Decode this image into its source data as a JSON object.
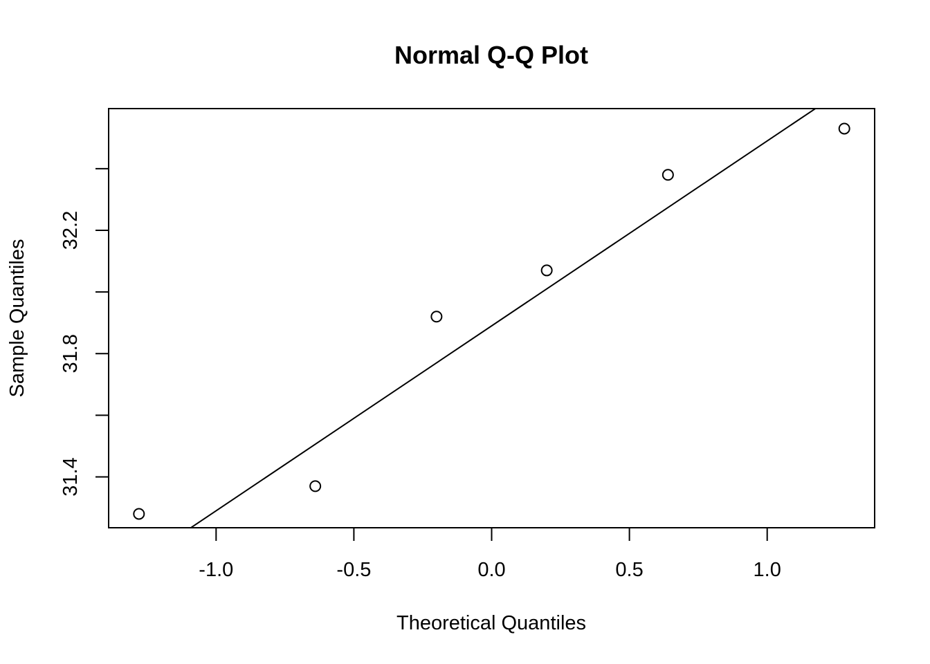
{
  "chart_data": {
    "type": "scatter",
    "title": "Normal Q-Q Plot",
    "xlabel": "Theoretical Quantiles",
    "ylabel": "Sample Quantiles",
    "xlim": [
      -1.39,
      1.39
    ],
    "ylim": [
      31.235,
      32.595
    ],
    "x_ticks": [
      -1.0,
      -0.5,
      0.0,
      0.5,
      1.0
    ],
    "x_tick_labels": [
      "-1.0",
      "-0.5",
      "0.0",
      "0.5",
      "1.0"
    ],
    "y_ticks": [
      31.4,
      31.6,
      31.8,
      32.0,
      32.2,
      32.4
    ],
    "y_tick_labels": [
      "31.4",
      "",
      "31.8",
      "",
      "32.2",
      ""
    ],
    "grid": false,
    "points": [
      {
        "x": -1.28,
        "y": 31.28
      },
      {
        "x": -0.64,
        "y": 31.37
      },
      {
        "x": -0.2,
        "y": 31.92
      },
      {
        "x": 0.2,
        "y": 32.07
      },
      {
        "x": 0.64,
        "y": 32.38
      },
      {
        "x": 1.28,
        "y": 32.53
      }
    ],
    "reference_line": {
      "intercept": 31.89,
      "slope": 0.6
    }
  }
}
